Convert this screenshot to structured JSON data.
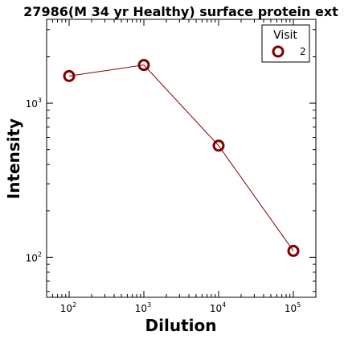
{
  "chart_data": {
    "type": "line",
    "title": "27986(M 34 yr Healthy) surface protein ext",
    "xlabel": "Dilution",
    "ylabel": "Intensity",
    "x_scale": "log",
    "y_scale": "log",
    "xlim": [
      50,
      200000
    ],
    "ylim": [
      55,
      3500
    ],
    "x_ticks": [
      {
        "base": "10",
        "exp": "2",
        "value": 100
      },
      {
        "base": "10",
        "exp": "3",
        "value": 1000
      },
      {
        "base": "10",
        "exp": "4",
        "value": 10000
      },
      {
        "base": "10",
        "exp": "5",
        "value": 100000
      }
    ],
    "y_ticks": [
      {
        "base": "10",
        "exp": "2",
        "value": 100
      },
      {
        "base": "10",
        "exp": "3",
        "value": 1000
      }
    ],
    "grid": false,
    "legend": {
      "title": "Visit",
      "placement": "top-right"
    },
    "series": [
      {
        "name": "2",
        "color": "#800000",
        "x": [
          100,
          1000,
          10000,
          100000
        ],
        "y": [
          1500,
          1770,
          530,
          110
        ]
      }
    ]
  }
}
